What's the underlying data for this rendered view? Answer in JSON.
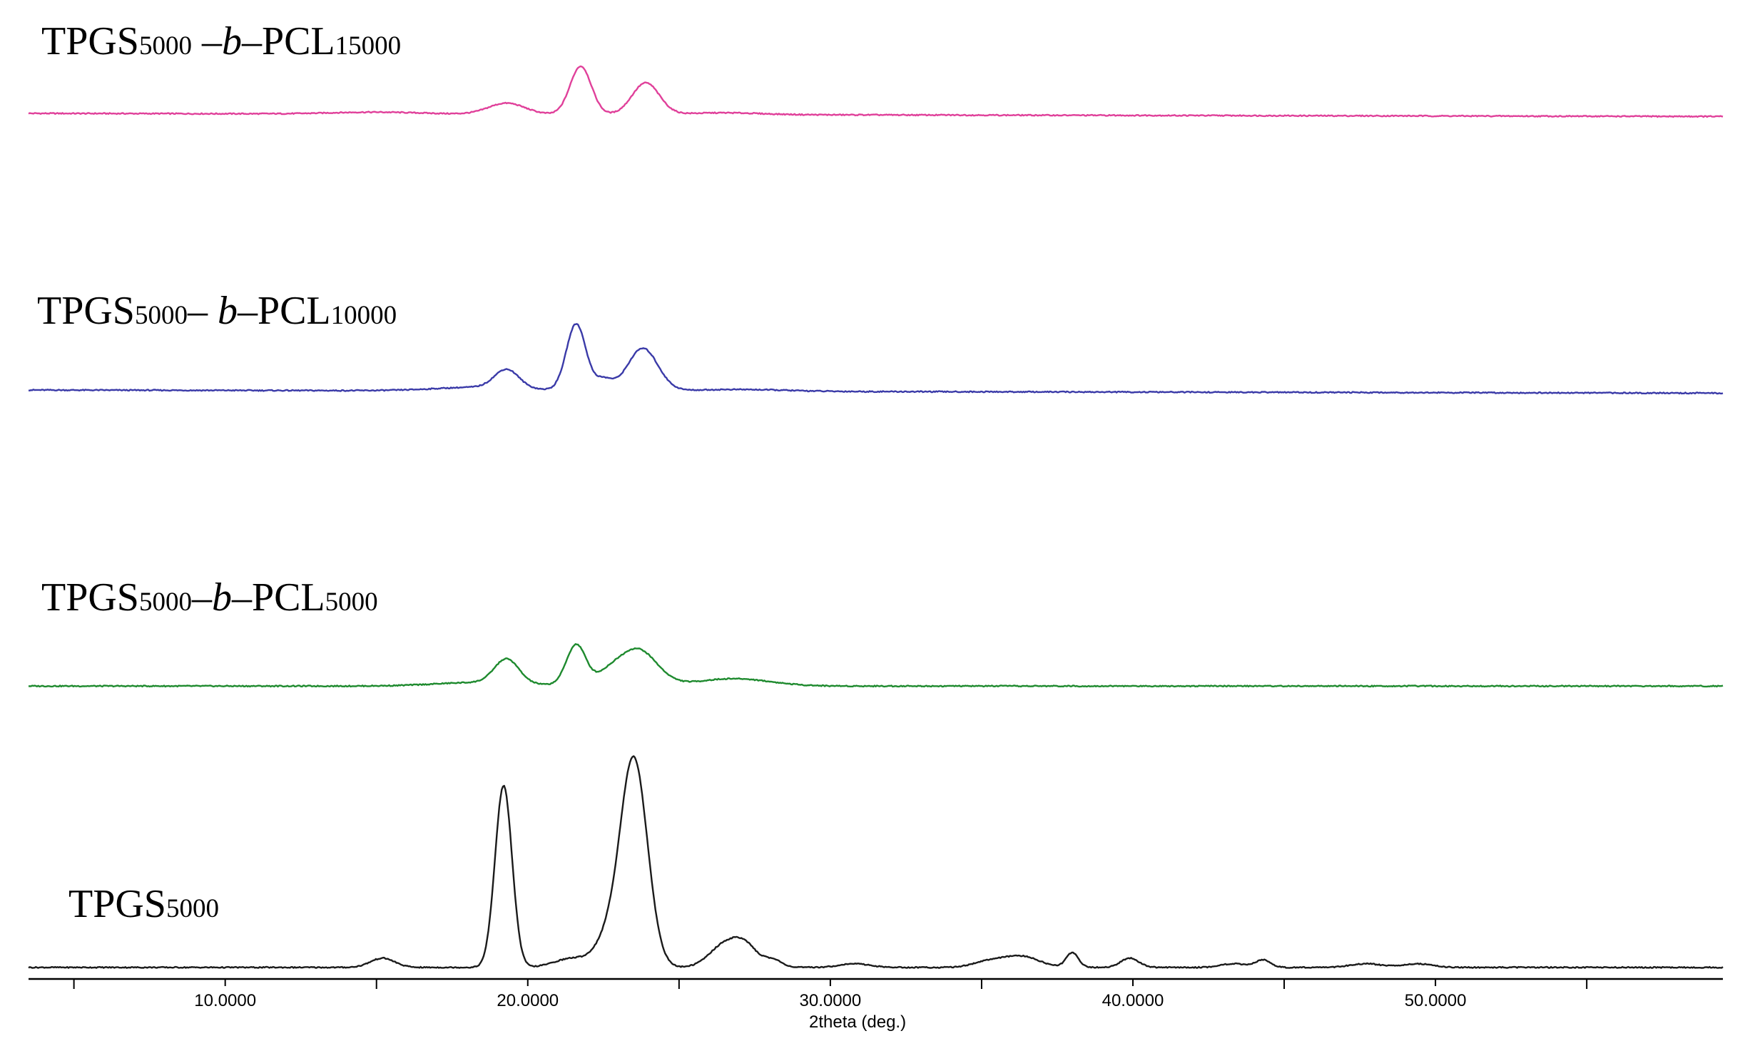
{
  "chart_data": {
    "type": "line",
    "title": "",
    "xlabel": "2theta (deg.)",
    "ylabel": "",
    "xlim": [
      3.5,
      59.5
    ],
    "x_ticks": [
      10,
      20,
      30,
      40,
      50
    ],
    "x_tick_labels": [
      "10.0000",
      "20.0000",
      "30.0000",
      "40.0000",
      "50.0000"
    ],
    "grid": false,
    "legend": "none (inline labels above each trace)",
    "series": [
      {
        "label_parts": [
          "TPGS",
          "5000",
          " –",
          "b",
          "–PCL",
          "15000"
        ],
        "color": "#e0409a",
        "baseline": 0.05,
        "slope": -0.0003,
        "peaks": [
          [
            19.3,
            0.06,
            0.6
          ],
          [
            21.75,
            0.26,
            0.35
          ],
          [
            23.9,
            0.17,
            0.45
          ],
          [
            15,
            0.01,
            1.5
          ],
          [
            26.5,
            0.01,
            1.2
          ]
        ]
      },
      {
        "label_parts": [
          "TPGS",
          "5000",
          "– ",
          "b",
          "–PCL",
          "10000"
        ],
        "color": "#3a3aa8",
        "baseline": 0.05,
        "slope": -0.0003,
        "peaks": [
          [
            19.3,
            0.1,
            0.4
          ],
          [
            21.6,
            0.36,
            0.32
          ],
          [
            22.5,
            0.06,
            0.3
          ],
          [
            23.8,
            0.23,
            0.5
          ],
          [
            18.5,
            0.02,
            1.5
          ],
          [
            27,
            0.01,
            1.5
          ]
        ]
      },
      {
        "label_parts": [
          "TPGS",
          "5000",
          "–",
          "b",
          "–PCL",
          "5000"
        ],
        "color": "#1e8a2e",
        "baseline": 0.03,
        "slope": 0,
        "peaks": [
          [
            19.3,
            0.13,
            0.4
          ],
          [
            21.6,
            0.22,
            0.32
          ],
          [
            23.6,
            0.2,
            0.65
          ],
          [
            22.6,
            0.04,
            0.4
          ],
          [
            26.8,
            0.04,
            1.2
          ],
          [
            18.5,
            0.02,
            1.5
          ]
        ]
      },
      {
        "label_parts": [
          "TPGS",
          "5000"
        ],
        "color": "#1a1a1a",
        "baseline": 0.02,
        "slope": 0,
        "peaks": [
          [
            19.2,
            0.98,
            0.28
          ],
          [
            23.5,
            1.13,
            0.45
          ],
          [
            15.2,
            0.05,
            0.4
          ],
          [
            21.5,
            0.05,
            0.6
          ],
          [
            22.6,
            0.12,
            0.4
          ],
          [
            26.5,
            0.12,
            0.5
          ],
          [
            27.2,
            0.1,
            0.4
          ],
          [
            28.1,
            0.04,
            0.3
          ],
          [
            36.3,
            0.06,
            0.6
          ],
          [
            35.2,
            0.03,
            0.5
          ],
          [
            38,
            0.08,
            0.2
          ],
          [
            39.9,
            0.05,
            0.3
          ],
          [
            44.3,
            0.04,
            0.25
          ],
          [
            43.3,
            0.02,
            0.4
          ],
          [
            47.7,
            0.02,
            0.5
          ],
          [
            49.4,
            0.02,
            0.5
          ],
          [
            30.8,
            0.02,
            0.5
          ]
        ]
      }
    ]
  }
}
